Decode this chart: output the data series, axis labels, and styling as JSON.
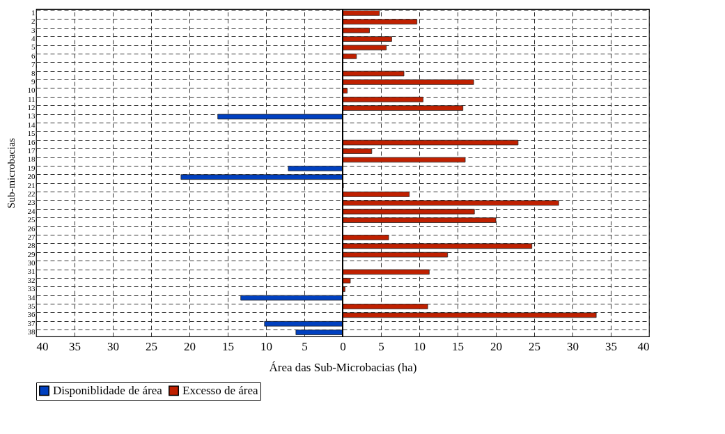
{
  "chart_data": {
    "type": "bar",
    "orientation": "horizontal",
    "xlabel": "Área das Sub-Microbacias (ha)",
    "ylabel": "Sub-microbacias",
    "categories": [
      "1",
      "2",
      "3",
      "4",
      "5",
      "6",
      "7",
      "8",
      "9",
      "10",
      "11",
      "12",
      "13",
      "14",
      "15",
      "16",
      "17",
      "18",
      "19",
      "20",
      "21",
      "22",
      "23",
      "24",
      "25",
      "26",
      "27",
      "28",
      "29",
      "30",
      "31",
      "32",
      "33",
      "34",
      "35",
      "36",
      "37",
      "38"
    ],
    "series": [
      {
        "name": "Disponiblidade de área",
        "color": "#0040c0",
        "values": [
          null,
          null,
          null,
          null,
          null,
          null,
          null,
          null,
          null,
          null,
          null,
          null,
          -16.3,
          null,
          null,
          null,
          null,
          null,
          -7.1,
          -21.1,
          null,
          null,
          null,
          null,
          null,
          null,
          null,
          null,
          null,
          null,
          null,
          null,
          null,
          -13.3,
          null,
          null,
          -10.2,
          -6.1
        ]
      },
      {
        "name": "Excesso de área",
        "color": "#c02000",
        "values": [
          4.8,
          9.7,
          3.5,
          6.4,
          5.7,
          1.8,
          null,
          8.0,
          17.1,
          0.6,
          10.5,
          15.7,
          null,
          null,
          null,
          22.9,
          3.8,
          16.0,
          null,
          null,
          0.1,
          8.7,
          28.2,
          17.2,
          20.0,
          null,
          6.0,
          24.7,
          13.7,
          null,
          11.3,
          1.0,
          0.3,
          null,
          11.1,
          33.1,
          null,
          null
        ]
      }
    ],
    "xlim": [
      -40,
      40
    ],
    "xticks": [
      {
        "value": -40,
        "label": "40"
      },
      {
        "value": -35,
        "label": "35"
      },
      {
        "value": -30,
        "label": "30"
      },
      {
        "value": -25,
        "label": "25"
      },
      {
        "value": -20,
        "label": "20"
      },
      {
        "value": -15,
        "label": "15"
      },
      {
        "value": -10,
        "label": "10"
      },
      {
        "value": -5,
        "label": "5"
      },
      0,
      5,
      10,
      15,
      20,
      25,
      30,
      35,
      40
    ],
    "grid": true,
    "legend": "bottom"
  }
}
